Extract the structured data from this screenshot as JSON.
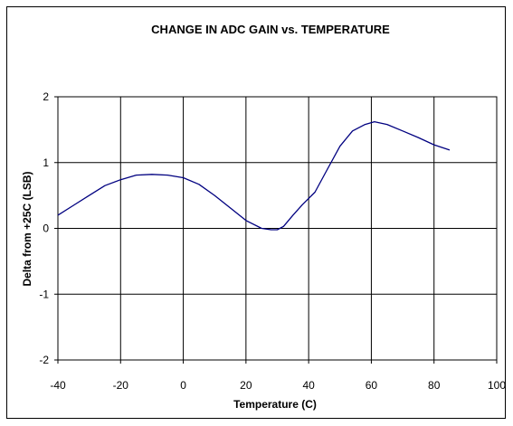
{
  "chart_data": {
    "type": "line",
    "title": "CHANGE IN ADC GAIN vs. TEMPERATURE",
    "xlabel": "Temperature (C)",
    "ylabel": "Delta from +25C (LSB)",
    "xlim": [
      -40,
      100
    ],
    "ylim": [
      -2,
      2
    ],
    "xticks": [
      -40,
      -20,
      0,
      20,
      40,
      60,
      80,
      100
    ],
    "yticks": [
      -2,
      -1,
      0,
      1,
      2
    ],
    "grid": true,
    "legend": "none",
    "line_color": "#000080",
    "series": [
      {
        "x": [
          -40,
          -35,
          -30,
          -25,
          -20,
          -15,
          -10,
          -5,
          0,
          5,
          10,
          15,
          20,
          25,
          28,
          30,
          32,
          35,
          38,
          42,
          46,
          50,
          54,
          58,
          61,
          65,
          70,
          75,
          80,
          85
        ],
        "values": [
          0.2,
          0.35,
          0.5,
          0.65,
          0.74,
          0.81,
          0.82,
          0.81,
          0.77,
          0.67,
          0.5,
          0.31,
          0.12,
          0.0,
          -0.02,
          -0.02,
          0.03,
          0.2,
          0.36,
          0.55,
          0.9,
          1.25,
          1.48,
          1.58,
          1.62,
          1.58,
          1.48,
          1.38,
          1.27,
          1.19
        ]
      }
    ]
  }
}
